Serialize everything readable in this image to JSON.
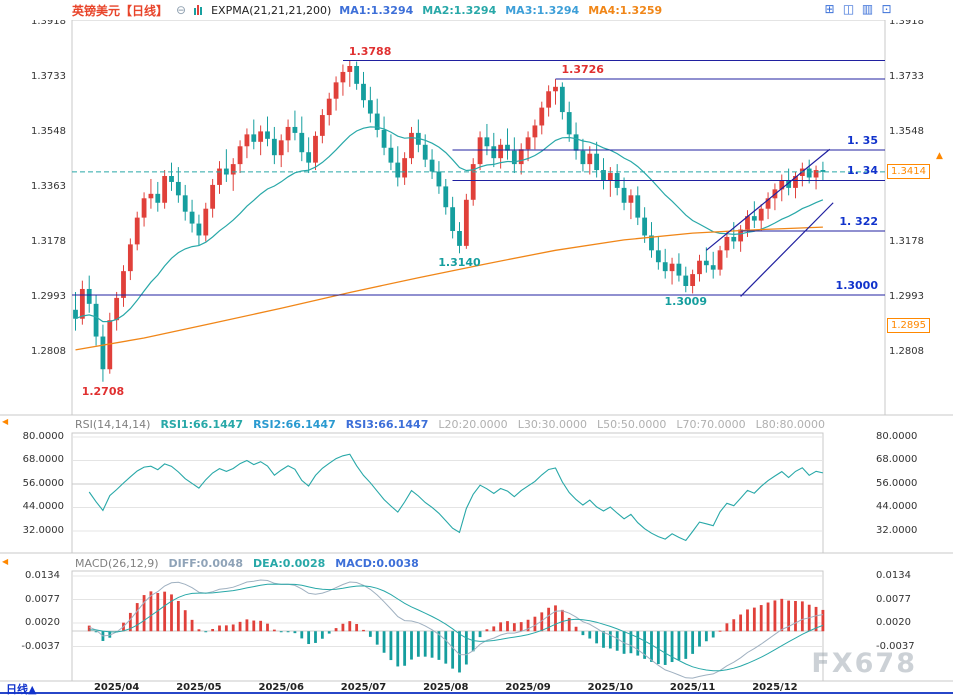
{
  "accent_colors": {
    "up": "#e0403a",
    "down": "#159e9e",
    "ma_fast": "#28a8a8",
    "ma_slow": "#f08618",
    "navy_line": "#2020a0",
    "blue_label": "#1133cc",
    "red_label": "#e03030",
    "teal_label": "#159e9e",
    "orange": "#ff8800",
    "title": "#e8442a",
    "icon_gray": "#8fa0b0",
    "icon_blue": "#3a6fd8",
    "axis_text": "#333333",
    "watermark": "#9aa5af",
    "bottom_line": "#2746c8"
  },
  "header": {
    "symbol": "英镑美元",
    "period": "【日线】",
    "collapse_icon": "⊖",
    "indicator_label": "EXPMA(21,21,21,200)",
    "ma_items": [
      {
        "text": "MA1:1.3294",
        "color": "#3d6fd8"
      },
      {
        "text": "MA2:1.3294",
        "color": "#28a8a8"
      },
      {
        "text": "MA3:1.3294",
        "color": "#3d9fd8"
      },
      {
        "text": "MA4:1.3259",
        "color": "#f08618"
      }
    ],
    "toolbar_icons": [
      "⊞",
      "◫",
      "▥",
      "⊡"
    ]
  },
  "rsi_header": {
    "name": "RSI(14,14,14)",
    "values": [
      {
        "text": "RSI1:66.1447",
        "color": "#28a8a8"
      },
      {
        "text": "RSI2:66.1447",
        "color": "#2a9ad0"
      },
      {
        "text": "RSI3:66.1447",
        "color": "#3d6fd8"
      }
    ],
    "levels": [
      "L20:20.0000",
      "L30:30.0000",
      "L50:50.0000",
      "L70:70.0000",
      "L80:80.0000"
    ]
  },
  "macd_header": {
    "name": "MACD(26,12,9)",
    "values": [
      {
        "text": "DIFF:0.0048",
        "color": "#8fa3b8"
      },
      {
        "text": "DEA:0.0028",
        "color": "#28a8a8"
      },
      {
        "text": "MACD:0.0038",
        "color": "#3d6fd8"
      }
    ]
  },
  "bottom": {
    "period_label": "日线",
    "arrow": "▲"
  },
  "watermark": "FX678",
  "chart_data": [
    {
      "type": "candlestick",
      "title": "英镑美元 日线 (GBP/USD daily)",
      "last_price": 1.3414,
      "current_price": 1.3414,
      "ylim": [
        1.2596,
        1.3925
      ],
      "yticks_left": [
        "1.3918",
        "1.3733",
        "1.3548",
        "1.3363",
        "1.3178",
        "1.2993",
        "1.2808"
      ],
      "yticks_right": [
        "1.3918",
        "1.3733",
        "1.3548",
        "1.3178",
        "1.2993",
        "1.2808"
      ],
      "price_badges": [
        {
          "text": "1.3414",
          "price": 1.3414
        },
        {
          "text": "1.2895",
          "price": 1.2895
        }
      ],
      "x_tick_labels": [
        "2025/04",
        "2025/05",
        "2025/06",
        "2025/07",
        "2025/08",
        "2025/09",
        "2025/10",
        "2025/11",
        "2025/12"
      ],
      "x_tick_indices": [
        6,
        18,
        30,
        42,
        54,
        66,
        78,
        90,
        102
      ],
      "ema_period": 21,
      "ohlc": [
        [
          1.295,
          1.301,
          1.288,
          1.292
        ],
        [
          1.292,
          1.3048,
          1.29,
          1.302
        ],
        [
          1.302,
          1.3065,
          1.294,
          1.297
        ],
        [
          1.297,
          1.3,
          1.283,
          1.286
        ],
        [
          1.286,
          1.29,
          1.2708,
          1.275
        ],
        [
          1.275,
          1.294,
          1.2735,
          1.2915
        ],
        [
          1.2915,
          1.301,
          1.288,
          1.299
        ],
        [
          1.299,
          1.31,
          1.296,
          1.308
        ],
        [
          1.308,
          1.319,
          1.305,
          1.317
        ],
        [
          1.317,
          1.328,
          1.315,
          1.326
        ],
        [
          1.326,
          1.3345,
          1.323,
          1.3325
        ],
        [
          1.3325,
          1.339,
          1.329,
          1.334
        ],
        [
          1.334,
          1.338,
          1.328,
          1.331
        ],
        [
          1.331,
          1.342,
          1.329,
          1.34
        ],
        [
          1.34,
          1.3445,
          1.335,
          1.338
        ],
        [
          1.338,
          1.343,
          1.331,
          1.3335
        ],
        [
          1.3335,
          1.337,
          1.325,
          1.328
        ],
        [
          1.328,
          1.332,
          1.321,
          1.324
        ],
        [
          1.324,
          1.327,
          1.3165,
          1.32
        ],
        [
          1.32,
          1.331,
          1.318,
          1.329
        ],
        [
          1.329,
          1.339,
          1.326,
          1.337
        ],
        [
          1.337,
          1.345,
          1.334,
          1.3425
        ],
        [
          1.3425,
          1.349,
          1.338,
          1.3405
        ],
        [
          1.3405,
          1.346,
          1.335,
          1.344
        ],
        [
          1.344,
          1.352,
          1.341,
          1.35
        ],
        [
          1.35,
          1.356,
          1.346,
          1.354
        ],
        [
          1.354,
          1.359,
          1.349,
          1.3515
        ],
        [
          1.3515,
          1.357,
          1.347,
          1.355
        ],
        [
          1.355,
          1.36,
          1.35,
          1.3525
        ],
        [
          1.3525,
          1.3565,
          1.344,
          1.347
        ],
        [
          1.347,
          1.354,
          1.343,
          1.352
        ],
        [
          1.352,
          1.359,
          1.348,
          1.3565
        ],
        [
          1.3565,
          1.362,
          1.352,
          1.3545
        ],
        [
          1.3545,
          1.36,
          1.345,
          1.348
        ],
        [
          1.348,
          1.353,
          1.341,
          1.3445
        ],
        [
          1.3445,
          1.355,
          1.342,
          1.3535
        ],
        [
          1.3535,
          1.3625,
          1.351,
          1.3605
        ],
        [
          1.3605,
          1.368,
          1.357,
          1.366
        ],
        [
          1.366,
          1.3735,
          1.362,
          1.3715
        ],
        [
          1.3715,
          1.3775,
          1.367,
          1.375
        ],
        [
          1.375,
          1.3788,
          1.37,
          1.377
        ],
        [
          1.377,
          1.3785,
          1.369,
          1.371
        ],
        [
          1.371,
          1.375,
          1.363,
          1.3655
        ],
        [
          1.3655,
          1.37,
          1.358,
          1.361
        ],
        [
          1.361,
          1.366,
          1.353,
          1.3555
        ],
        [
          1.3555,
          1.36,
          1.347,
          1.3495
        ],
        [
          1.3495,
          1.354,
          1.342,
          1.3445
        ],
        [
          1.3445,
          1.35,
          1.3365,
          1.3395
        ],
        [
          1.3395,
          1.348,
          1.337,
          1.346
        ],
        [
          1.346,
          1.3565,
          1.344,
          1.3545
        ],
        [
          1.3545,
          1.359,
          1.348,
          1.3505
        ],
        [
          1.3505,
          1.354,
          1.343,
          1.3455
        ],
        [
          1.3455,
          1.349,
          1.339,
          1.3415
        ],
        [
          1.3415,
          1.345,
          1.334,
          1.3365
        ],
        [
          1.3365,
          1.339,
          1.327,
          1.3295
        ],
        [
          1.3295,
          1.333,
          1.319,
          1.3215
        ],
        [
          1.3215,
          1.3245,
          1.314,
          1.3165
        ],
        [
          1.3165,
          1.334,
          1.3155,
          1.332
        ],
        [
          1.332,
          1.346,
          1.33,
          1.344
        ],
        [
          1.344,
          1.355,
          1.342,
          1.353
        ],
        [
          1.353,
          1.3575,
          1.347,
          1.35
        ],
        [
          1.35,
          1.3545,
          1.343,
          1.346
        ],
        [
          1.346,
          1.3525,
          1.3425,
          1.3505
        ],
        [
          1.3505,
          1.356,
          1.3455,
          1.3485
        ],
        [
          1.3485,
          1.353,
          1.341,
          1.344
        ],
        [
          1.344,
          1.351,
          1.3405,
          1.349
        ],
        [
          1.349,
          1.355,
          1.345,
          1.353
        ],
        [
          1.353,
          1.359,
          1.349,
          1.357
        ],
        [
          1.357,
          1.365,
          1.354,
          1.363
        ],
        [
          1.363,
          1.3705,
          1.36,
          1.3685
        ],
        [
          1.3685,
          1.3726,
          1.364,
          1.37
        ],
        [
          1.37,
          1.3715,
          1.359,
          1.3615
        ],
        [
          1.3615,
          1.365,
          1.3515,
          1.354
        ],
        [
          1.354,
          1.358,
          1.3455,
          1.3485
        ],
        [
          1.3485,
          1.3525,
          1.3415,
          1.344
        ],
        [
          1.344,
          1.35,
          1.3405,
          1.3475
        ],
        [
          1.3475,
          1.3515,
          1.3395,
          1.342
        ],
        [
          1.342,
          1.346,
          1.3355,
          1.3385
        ],
        [
          1.3385,
          1.343,
          1.333,
          1.341
        ],
        [
          1.341,
          1.344,
          1.3335,
          1.336
        ],
        [
          1.336,
          1.3395,
          1.3285,
          1.331
        ],
        [
          1.331,
          1.3355,
          1.3255,
          1.3335
        ],
        [
          1.3335,
          1.3365,
          1.3235,
          1.326
        ],
        [
          1.326,
          1.3295,
          1.3175,
          1.32
        ],
        [
          1.32,
          1.3245,
          1.3125,
          1.315
        ],
        [
          1.315,
          1.3195,
          1.3085,
          1.311
        ],
        [
          1.311,
          1.3155,
          1.3055,
          1.308
        ],
        [
          1.308,
          1.3125,
          1.3035,
          1.3105
        ],
        [
          1.3105,
          1.314,
          1.3045,
          1.3065
        ],
        [
          1.3065,
          1.3095,
          1.3009,
          1.303
        ],
        [
          1.303,
          1.3085,
          1.3005,
          1.307
        ],
        [
          1.307,
          1.3135,
          1.3045,
          1.3115
        ],
        [
          1.3115,
          1.316,
          1.3075,
          1.31
        ],
        [
          1.31,
          1.3145,
          1.3055,
          1.3085
        ],
        [
          1.3085,
          1.3165,
          1.3065,
          1.315
        ],
        [
          1.315,
          1.3215,
          1.3125,
          1.3195
        ],
        [
          1.3195,
          1.3245,
          1.3155,
          1.318
        ],
        [
          1.318,
          1.3235,
          1.3145,
          1.322
        ],
        [
          1.322,
          1.3285,
          1.3195,
          1.3265
        ],
        [
          1.3265,
          1.3315,
          1.3225,
          1.325
        ],
        [
          1.325,
          1.3305,
          1.3215,
          1.329
        ],
        [
          1.329,
          1.3345,
          1.3255,
          1.3325
        ],
        [
          1.3325,
          1.3375,
          1.3285,
          1.3355
        ],
        [
          1.3355,
          1.3405,
          1.3315,
          1.3385
        ],
        [
          1.3385,
          1.3425,
          1.3335,
          1.336
        ],
        [
          1.336,
          1.3415,
          1.3325,
          1.34
        ],
        [
          1.34,
          1.3445,
          1.3365,
          1.3425
        ],
        [
          1.3425,
          1.3455,
          1.3375,
          1.3395
        ],
        [
          1.3395,
          1.3435,
          1.3355,
          1.342
        ],
        [
          1.342,
          1.3448,
          1.3385,
          1.3414
        ]
      ],
      "slow_ma_points": [
        [
          0,
          1.2815
        ],
        [
          10,
          1.2855
        ],
        [
          20,
          1.2905
        ],
        [
          30,
          1.2955
        ],
        [
          40,
          1.3008
        ],
        [
          50,
          1.3058
        ],
        [
          60,
          1.3105
        ],
        [
          70,
          1.315
        ],
        [
          80,
          1.3185
        ],
        [
          90,
          1.3208
        ],
        [
          100,
          1.322
        ],
        [
          109,
          1.3228
        ]
      ],
      "hlines": [
        {
          "price": 1.3788,
          "from": 39,
          "label": "1.3788",
          "label_color": "red",
          "label_side": "left-above"
        },
        {
          "price": 1.3726,
          "from": 70,
          "label": "1.3726",
          "label_color": "red",
          "label_side": "left-above"
        },
        {
          "price": 1.3488,
          "from": 55,
          "label": "1. 35",
          "label_color": "blue",
          "label_side": "right-above"
        },
        {
          "price": 1.3385,
          "from": 55,
          "label": "1. 34",
          "label_color": "blue",
          "label_side": "right-above"
        },
        {
          "price": 1.3215,
          "from": 97,
          "label": "1. 322",
          "label_color": "blue",
          "label_side": "right-above"
        },
        {
          "price": 1.3,
          "from": 0,
          "label": "1.3000",
          "label_color": "blue",
          "label_side": "right-above"
        }
      ],
      "trendlines": [
        {
          "from": [
            92,
            1.315
          ],
          "to": [
            110,
            1.349
          ]
        },
        {
          "from": [
            97,
            1.2995
          ],
          "to": [
            110.5,
            1.331
          ]
        }
      ],
      "point_labels": [
        {
          "i": 4,
          "price": 1.2708,
          "text": "1.2708",
          "color": "red",
          "pos": "below"
        },
        {
          "i": 56,
          "price": 1.314,
          "text": "1.3140",
          "color": "teal",
          "pos": "below"
        },
        {
          "i": 89,
          "price": 1.3009,
          "text": "1.3009",
          "color": "teal",
          "pos": "below"
        }
      ]
    },
    {
      "type": "line",
      "name": "RSI(14,14,14)",
      "period": 14,
      "last_values": {
        "RSI1": 66.1447,
        "RSI2": 66.1447,
        "RSI3": 66.1447
      },
      "levels": {
        "L20": 20,
        "L30": 30,
        "L50": 50,
        "L70": 70,
        "L80": 80
      },
      "yticks": [
        "80.0000",
        "68.0000",
        "56.0000",
        "44.0000",
        "32.0000"
      ],
      "ylim": [
        21,
        82
      ]
    },
    {
      "type": "macd",
      "name": "MACD(26,12,9)",
      "params": [
        26,
        12,
        9
      ],
      "last_values": {
        "DIFF": 0.0048,
        "DEA": 0.0028,
        "MACD": 0.0038
      },
      "yticks": [
        "0.0134",
        "0.0077",
        "0.0020",
        "-0.0037"
      ],
      "ylim": [
        -0.0118,
        0.0146
      ]
    }
  ]
}
